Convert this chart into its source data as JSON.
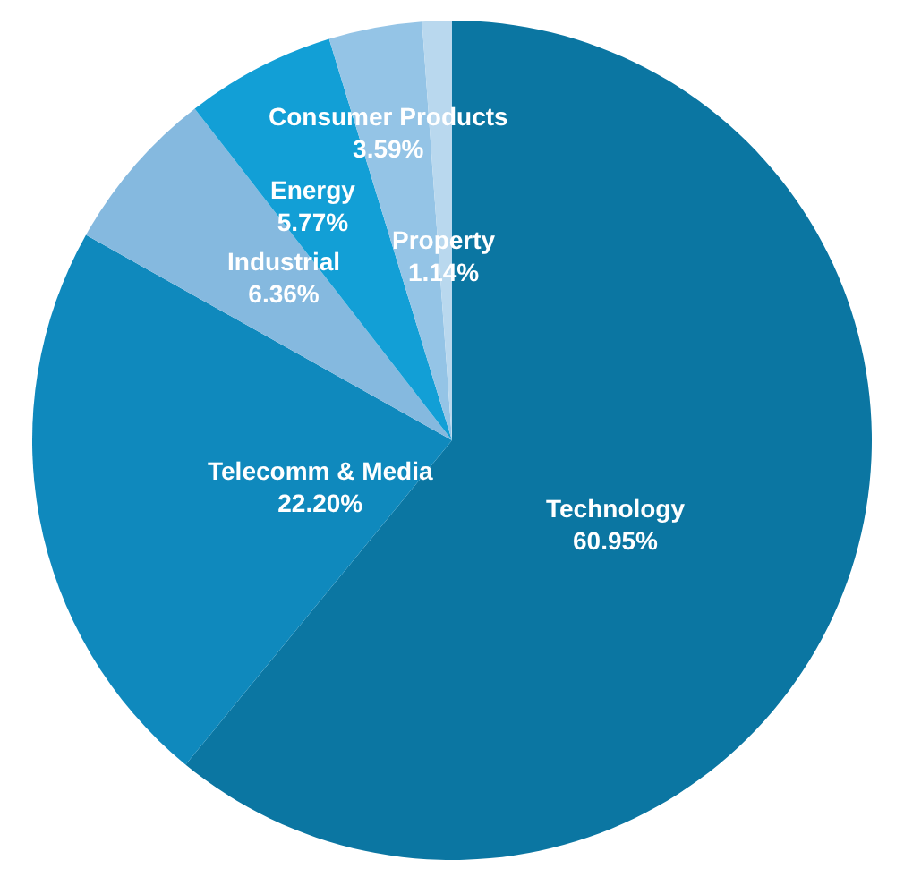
{
  "chart_data": {
    "type": "pie",
    "categories": [
      "Technology",
      "Telecomm & Media",
      "Industrial",
      "Energy",
      "Consumer Products",
      "Property"
    ],
    "values": [
      60.95,
      22.2,
      6.36,
      5.77,
      3.59,
      1.14
    ],
    "value_labels": [
      "60.95%",
      "22.20%",
      "6.36%",
      "5.77%",
      "3.59%",
      "1.14%"
    ],
    "colors": [
      "#0b76a2",
      "#0f89bd",
      "#85b9df",
      "#129fd6",
      "#94c4e6",
      "#b9d8ee"
    ],
    "legend": false
  }
}
